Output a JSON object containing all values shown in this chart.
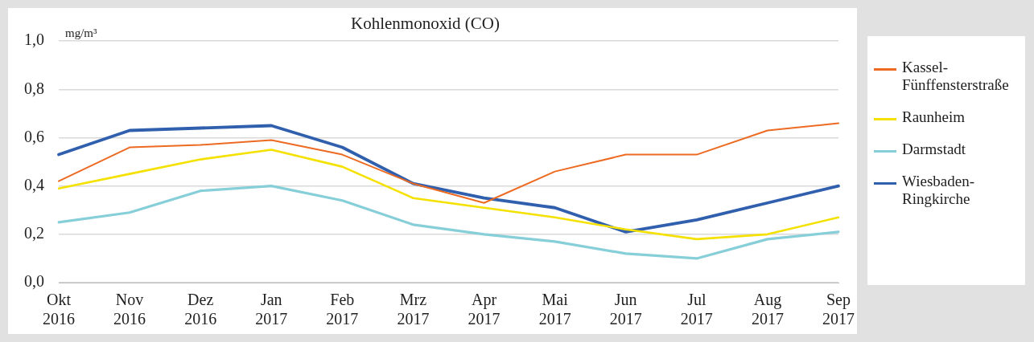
{
  "chart_data": {
    "type": "line",
    "title": "Kohlenmonoxid (CO)",
    "ylabel": "mg/m³",
    "categories": [
      "Okt 2016",
      "Nov 2016",
      "Dez 2016",
      "Jan 2017",
      "Feb 2017",
      "Mrz 2017",
      "Apr 2017",
      "Mai 2017",
      "Jun 2017",
      "Jul 2017",
      "Aug 2017",
      "Sep 2017"
    ],
    "series": [
      {
        "name": "Kassel-Fünffensterstraße",
        "color": "#ed6a22",
        "values": [
          0.42,
          0.56,
          0.57,
          0.59,
          0.53,
          0.41,
          0.33,
          0.46,
          0.53,
          0.53,
          0.63,
          0.66
        ]
      },
      {
        "name": "Raunheim",
        "color": "#f5e100",
        "values": [
          0.39,
          0.45,
          0.51,
          0.55,
          0.48,
          0.35,
          0.31,
          0.27,
          0.22,
          0.18,
          0.2,
          0.27
        ]
      },
      {
        "name": "Darmstadt",
        "color": "#86cfd9",
        "values": [
          0.25,
          0.29,
          0.38,
          0.4,
          0.34,
          0.24,
          0.2,
          0.17,
          0.12,
          0.1,
          0.18,
          0.21
        ]
      },
      {
        "name": "Wiesbaden-Ringkirche",
        "color": "#2f5fad",
        "values": [
          0.53,
          0.63,
          0.64,
          0.65,
          0.56,
          0.41,
          0.35,
          0.31,
          0.21,
          0.26,
          0.33,
          0.4
        ]
      }
    ],
    "ylim": [
      0,
      1
    ],
    "yticks": [
      {
        "value": 0,
        "label": "0,0"
      },
      {
        "value": 0.2,
        "label": "0,2"
      },
      {
        "value": 0.4,
        "label": "0,4"
      },
      {
        "value": 0.6,
        "label": "0,6"
      },
      {
        "value": 0.8,
        "label": "0,8"
      },
      {
        "value": 1,
        "label": "1,0"
      }
    ],
    "grid": "y",
    "legend": "right",
    "marker": "none",
    "line_style": "solid"
  }
}
